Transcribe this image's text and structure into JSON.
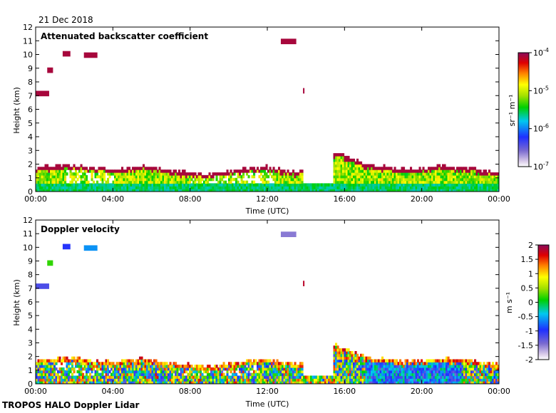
{
  "date_label": "21 Dec 2018",
  "footer": "TROPOS HALO Doppler Lidar",
  "colors": {
    "background": "#ffffff",
    "axis": "#000000",
    "backscatter_layer": "#a01040"
  },
  "chart_data": [
    {
      "type": "heatmap",
      "title": "Attenuated backscatter coefficient",
      "xlabel": "Time (UTC)",
      "ylabel": "Height (km)",
      "x_ticks": [
        "00:00",
        "04:00",
        "08:00",
        "12:00",
        "16:00",
        "20:00",
        "00:00"
      ],
      "xlim_hours": [
        0,
        24
      ],
      "y_ticks": [
        "0",
        "1",
        "2",
        "3",
        "4",
        "5",
        "6",
        "7",
        "8",
        "9",
        "10",
        "11",
        "12"
      ],
      "ylim": [
        0,
        12
      ],
      "grid": false,
      "colorbar": {
        "scale": "log",
        "range": [
          1e-07,
          0.0001
        ],
        "unit": "sr⁻¹ m⁻¹",
        "tick_labels": [
          {
            "base": "10",
            "exp": "-7",
            "value": 1e-07
          },
          {
            "base": "10",
            "exp": "-6",
            "value": 1e-06
          },
          {
            "base": "10",
            "exp": "-5",
            "value": 1e-05
          },
          {
            "base": "10",
            "exp": "-4",
            "value": 0.0001
          }
        ],
        "colormap": "rainbow-purple-red"
      },
      "features": {
        "boundary_layer_top_km": [
          [
            0,
            1.7
          ],
          [
            2,
            1.8
          ],
          [
            4,
            1.5
          ],
          [
            5.5,
            1.8
          ],
          [
            7,
            1.4
          ],
          [
            9,
            1.2
          ],
          [
            10.5,
            1.5
          ],
          [
            12,
            1.7
          ],
          [
            13.5,
            1.3
          ],
          [
            15.5,
            2.8
          ],
          [
            17,
            1.9
          ],
          [
            19,
            1.5
          ],
          [
            21,
            1.8
          ],
          [
            22.5,
            1.6
          ],
          [
            24,
            1.3
          ]
        ],
        "elevated_cloud_segments": [
          {
            "t0": 0.0,
            "t1": 0.7,
            "h": 7.1
          },
          {
            "t0": 0.6,
            "t1": 0.9,
            "h": 8.8
          },
          {
            "t0": 1.4,
            "t1": 1.8,
            "h": 10.0
          },
          {
            "t0": 2.5,
            "t1": 3.2,
            "h": 9.9
          },
          {
            "t0": 12.7,
            "t1": 13.5,
            "h": 10.9
          },
          {
            "t0": 13.85,
            "t1": 13.9,
            "h": 7.3
          }
        ]
      }
    },
    {
      "type": "heatmap",
      "title": "Doppler velocity",
      "xlabel": "Time (UTC)",
      "ylabel": "Height (km)",
      "x_ticks": [
        "00:00",
        "04:00",
        "08:00",
        "12:00",
        "16:00",
        "20:00",
        "00:00"
      ],
      "xlim_hours": [
        0,
        24
      ],
      "y_ticks": [
        "0",
        "1",
        "2",
        "3",
        "4",
        "5",
        "6",
        "7",
        "8",
        "9",
        "10",
        "11",
        "12"
      ],
      "ylim": [
        0,
        12
      ],
      "grid": false,
      "colorbar": {
        "scale": "linear",
        "range": [
          -2,
          2
        ],
        "unit": "m s⁻¹",
        "tick_labels": [
          "2",
          "1.5",
          "1",
          "0.5",
          "0",
          "-0.5",
          "-1",
          "-1.5",
          "-2"
        ],
        "colormap": "rainbow-purple-red"
      },
      "features": {
        "boundary_layer_top_km": [
          [
            0,
            1.7
          ],
          [
            2,
            1.8
          ],
          [
            4,
            1.5
          ],
          [
            5.5,
            1.8
          ],
          [
            7,
            1.4
          ],
          [
            9,
            1.2
          ],
          [
            10.5,
            1.5
          ],
          [
            12,
            1.7
          ],
          [
            13.5,
            1.3
          ],
          [
            15.5,
            2.8
          ],
          [
            17,
            1.9
          ],
          [
            19,
            1.5
          ],
          [
            21,
            1.8
          ],
          [
            22.5,
            1.6
          ],
          [
            24,
            1.3
          ]
        ],
        "elevated_cloud_segments": [
          {
            "t0": 0.0,
            "t1": 0.7,
            "h": 7.1,
            "v": -1.2
          },
          {
            "t0": 0.6,
            "t1": 0.9,
            "h": 8.8,
            "v": 0.2
          },
          {
            "t0": 1.4,
            "t1": 1.8,
            "h": 10.0,
            "v": -1.0
          },
          {
            "t0": 2.5,
            "t1": 3.2,
            "h": 9.9,
            "v": -0.6
          },
          {
            "t0": 12.7,
            "t1": 13.5,
            "h": 10.9,
            "v": -1.5
          },
          {
            "t0": 13.85,
            "t1": 13.9,
            "h": 7.3,
            "v": 1.8
          }
        ]
      }
    }
  ]
}
